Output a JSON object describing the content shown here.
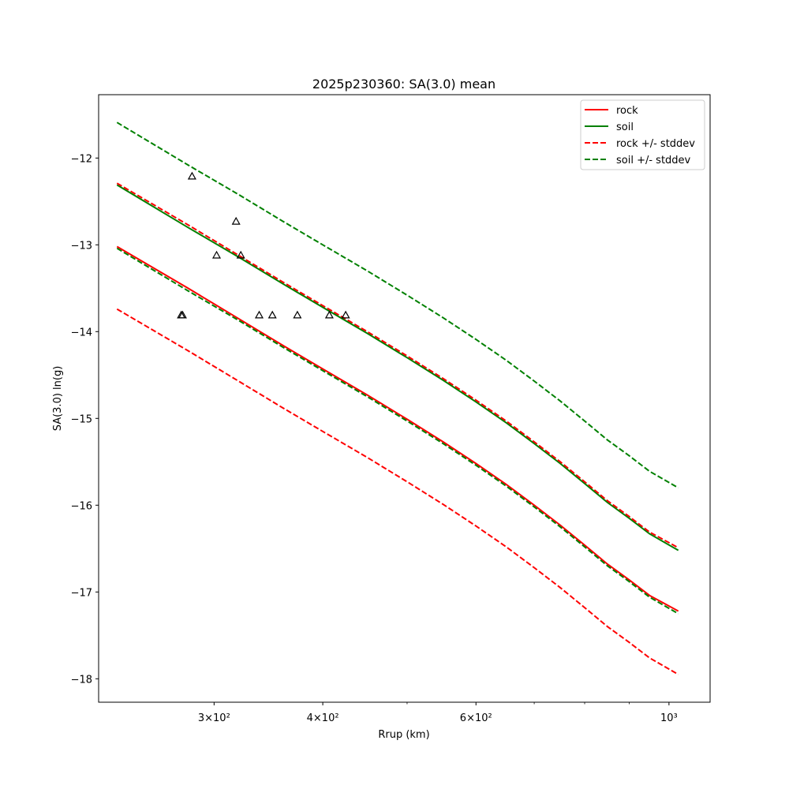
{
  "chart_data": {
    "type": "line",
    "title": "2025p230360: SA(3.0) mean",
    "xlabel": "Rrup (km)",
    "ylabel": "SA(3.0) ln(g)",
    "xscale": "log",
    "xlim": [
      221,
      1115
    ],
    "ylim": [
      -18.27,
      -11.27
    ],
    "xticks": [
      {
        "value": 300,
        "label": "3×10²"
      },
      {
        "value": 400,
        "label": "4×10²"
      },
      {
        "value": 600,
        "label": "6×10²"
      },
      {
        "value": 1000,
        "label": "10³"
      }
    ],
    "yticks": [
      -12,
      -13,
      -14,
      -15,
      -16,
      -17,
      -18
    ],
    "grid": false,
    "legend_position": "top-right",
    "series": [
      {
        "name": "rock",
        "color": "#ff0000",
        "style": "solid",
        "points": [
          [
            232,
            -13.02
          ],
          [
            280,
            -13.5
          ],
          [
            320,
            -13.85
          ],
          [
            360,
            -14.16
          ],
          [
            400,
            -14.43
          ],
          [
            450,
            -14.73
          ],
          [
            500,
            -15.01
          ],
          [
            550,
            -15.27
          ],
          [
            600,
            -15.52
          ],
          [
            650,
            -15.76
          ],
          [
            700,
            -16.0
          ],
          [
            750,
            -16.23
          ],
          [
            800,
            -16.46
          ],
          [
            850,
            -16.68
          ],
          [
            900,
            -16.86
          ],
          [
            950,
            -17.04
          ],
          [
            1025,
            -17.22
          ]
        ]
      },
      {
        "name": "soil",
        "color": "#008000",
        "style": "solid",
        "points": [
          [
            232,
            -12.31
          ],
          [
            280,
            -12.8
          ],
          [
            320,
            -13.14
          ],
          [
            360,
            -13.45
          ],
          [
            400,
            -13.72
          ],
          [
            450,
            -14.02
          ],
          [
            500,
            -14.3
          ],
          [
            550,
            -14.56
          ],
          [
            600,
            -14.81
          ],
          [
            650,
            -15.05
          ],
          [
            700,
            -15.29
          ],
          [
            750,
            -15.52
          ],
          [
            800,
            -15.75
          ],
          [
            850,
            -15.97
          ],
          [
            900,
            -16.15
          ],
          [
            950,
            -16.33
          ],
          [
            1025,
            -16.52
          ]
        ]
      },
      {
        "name": "rock +/- stddev",
        "color": "#ff0000",
        "style": "dashed",
        "points": [
          [
            232,
            -12.29
          ],
          [
            280,
            -12.77
          ],
          [
            320,
            -13.12
          ],
          [
            360,
            -13.43
          ],
          [
            400,
            -13.7
          ],
          [
            450,
            -14.0
          ],
          [
            500,
            -14.28
          ],
          [
            550,
            -14.54
          ],
          [
            600,
            -14.79
          ],
          [
            650,
            -15.03
          ],
          [
            700,
            -15.27
          ],
          [
            750,
            -15.5
          ],
          [
            800,
            -15.73
          ],
          [
            850,
            -15.95
          ],
          [
            900,
            -16.13
          ],
          [
            950,
            -16.31
          ],
          [
            1025,
            -16.49
          ]
        ]
      },
      {
        "name": "rock +/- stddev",
        "color": "#ff0000",
        "style": "dashed",
        "points": [
          [
            232,
            -13.74
          ],
          [
            280,
            -14.22
          ],
          [
            320,
            -14.57
          ],
          [
            360,
            -14.88
          ],
          [
            400,
            -15.15
          ],
          [
            450,
            -15.45
          ],
          [
            500,
            -15.73
          ],
          [
            550,
            -15.99
          ],
          [
            600,
            -16.24
          ],
          [
            650,
            -16.48
          ],
          [
            700,
            -16.72
          ],
          [
            750,
            -16.95
          ],
          [
            800,
            -17.18
          ],
          [
            850,
            -17.4
          ],
          [
            900,
            -17.58
          ],
          [
            950,
            -17.76
          ],
          [
            1025,
            -17.95
          ]
        ]
      },
      {
        "name": "soil +/- stddev",
        "color": "#008000",
        "style": "dashed",
        "points": [
          [
            232,
            -11.59
          ],
          [
            280,
            -12.08
          ],
          [
            320,
            -12.42
          ],
          [
            360,
            -12.73
          ],
          [
            400,
            -13.0
          ],
          [
            450,
            -13.3
          ],
          [
            500,
            -13.58
          ],
          [
            550,
            -13.84
          ],
          [
            600,
            -14.09
          ],
          [
            650,
            -14.33
          ],
          [
            700,
            -14.57
          ],
          [
            750,
            -14.8
          ],
          [
            800,
            -15.03
          ],
          [
            850,
            -15.25
          ],
          [
            900,
            -15.43
          ],
          [
            950,
            -15.61
          ],
          [
            1025,
            -15.8
          ]
        ]
      },
      {
        "name": "soil +/- stddev",
        "color": "#008000",
        "style": "dashed",
        "points": [
          [
            232,
            -13.04
          ],
          [
            280,
            -13.53
          ],
          [
            320,
            -13.87
          ],
          [
            360,
            -14.18
          ],
          [
            400,
            -14.45
          ],
          [
            450,
            -14.75
          ],
          [
            500,
            -15.03
          ],
          [
            550,
            -15.29
          ],
          [
            600,
            -15.54
          ],
          [
            650,
            -15.78
          ],
          [
            700,
            -16.02
          ],
          [
            750,
            -16.25
          ],
          [
            800,
            -16.48
          ],
          [
            850,
            -16.7
          ],
          [
            900,
            -16.88
          ],
          [
            950,
            -17.06
          ],
          [
            1025,
            -17.25
          ]
        ]
      }
    ],
    "observations": {
      "marker": "triangle",
      "color": "#000000",
      "points": [
        [
          275,
          -13.81
        ],
        [
          276,
          -13.81
        ],
        [
          283,
          -12.21
        ],
        [
          302,
          -13.12
        ],
        [
          318,
          -12.73
        ],
        [
          322,
          -13.12
        ],
        [
          338,
          -13.81
        ],
        [
          350,
          -13.81
        ],
        [
          374,
          -13.81
        ],
        [
          407,
          -13.81
        ],
        [
          425,
          -13.81
        ]
      ]
    },
    "legend": [
      {
        "label": "rock",
        "color": "#ff0000",
        "style": "solid"
      },
      {
        "label": "soil",
        "color": "#008000",
        "style": "solid"
      },
      {
        "label": "rock +/- stddev",
        "color": "#ff0000",
        "style": "dashed"
      },
      {
        "label": "soil +/- stddev",
        "color": "#008000",
        "style": "dashed"
      }
    ]
  }
}
